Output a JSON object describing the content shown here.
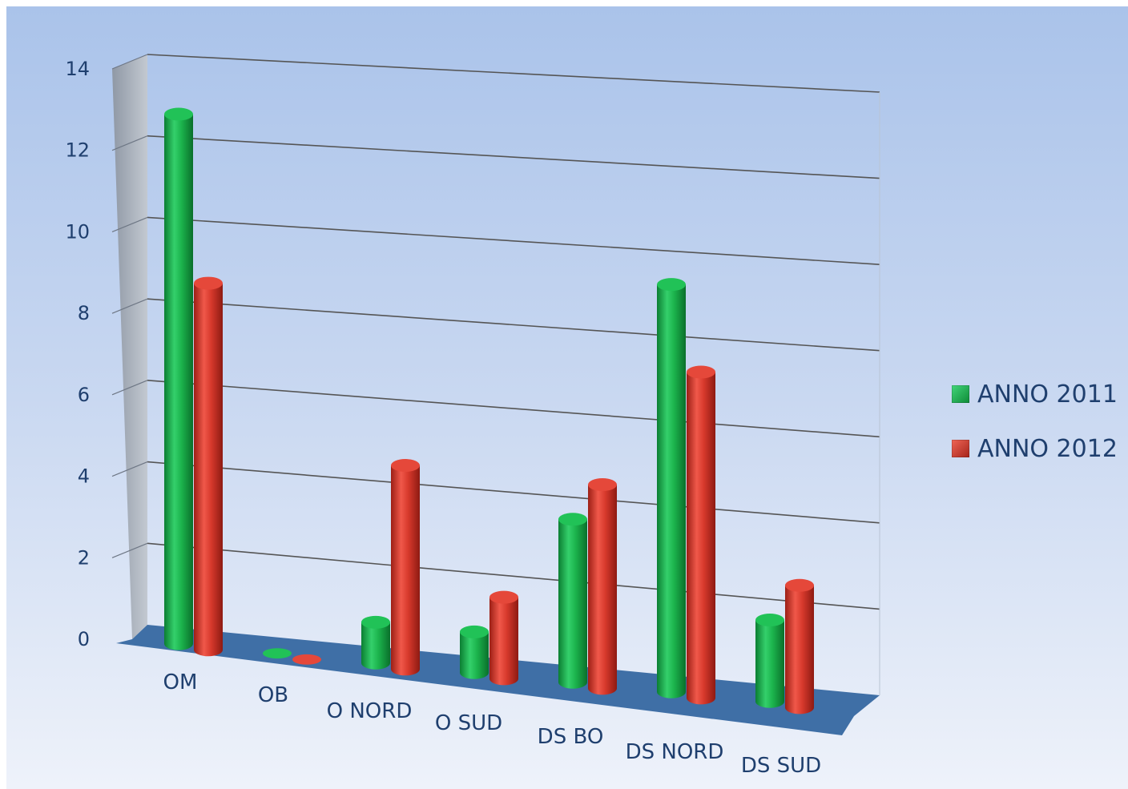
{
  "colors": {
    "series_2011": "#18b14a",
    "series_2012": "#d7392c",
    "gridline": "#555555",
    "floor": "#3f6fa6",
    "side_wall": "#9ea7b3",
    "text": "#1f3f6e"
  },
  "chart_data": {
    "type": "bar",
    "style": "3d-cylinder",
    "categories": [
      "OM",
      "OB",
      "O NORD",
      "O SUD",
      "DS BO",
      "DS NORD",
      "DS SUD"
    ],
    "series": [
      {
        "name": "ANNO 2011",
        "values": [
          13,
          0,
          1,
          1,
          4,
          10,
          2
        ]
      },
      {
        "name": "ANNO 2012",
        "values": [
          9,
          0,
          5,
          2,
          5,
          8,
          3
        ]
      }
    ],
    "yticks": [
      "0",
      "2",
      "4",
      "6",
      "8",
      "10",
      "12",
      "14"
    ],
    "ylim": [
      0,
      14
    ],
    "grid": true,
    "legend": "right"
  },
  "legend": {
    "items": [
      {
        "label": "ANNO 2011",
        "color": "#18b14a"
      },
      {
        "label": "ANNO 2012",
        "color": "#d7392c"
      }
    ]
  }
}
